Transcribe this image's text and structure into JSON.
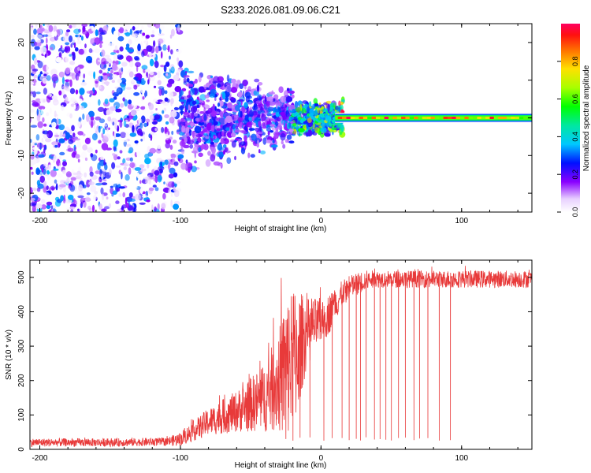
{
  "title": "S233.2026.081.09.06.C21",
  "colors": {
    "signal": "#e83a3a",
    "frame": "#000000"
  },
  "chart_data": [
    {
      "type": "heatmap",
      "title": "S233.2026.081.09.06.C21",
      "xlabel": "Height of straight line (km)",
      "ylabel": "Frequency (Hz)",
      "xlim": [
        -207,
        150
      ],
      "ylim": [
        -25,
        25
      ],
      "xticks": [
        -200,
        -100,
        0,
        100
      ],
      "yticks": [
        -20,
        -10,
        0,
        10,
        20
      ],
      "xtick_labels": [
        "-200",
        "-100",
        "0",
        "100"
      ],
      "ytick_labels": [
        "-20",
        "-10",
        "0",
        "10",
        "20"
      ],
      "description_regions": [
        {
          "x_range": [
            -207,
            -100
          ],
          "pattern": "random noise",
          "amplitude": [
            0.0,
            0.35
          ]
        },
        {
          "x_range": [
            -100,
            -20
          ],
          "pattern": "narrowing noise band",
          "amplitude": [
            0.1,
            0.35
          ]
        },
        {
          "x_range": [
            -20,
            12
          ],
          "pattern": "emerging carrier near 0 Hz",
          "amplitude": [
            0.2,
            0.8
          ]
        },
        {
          "x_range": [
            12,
            150
          ],
          "pattern": "stable carrier at 0 Hz",
          "amplitude": [
            0.4,
            1.0
          ]
        }
      ],
      "colorbar": {
        "label": "Normalized spectral amplitude",
        "range": [
          0,
          1
        ],
        "ticks": [
          0.0,
          0.2,
          0.4,
          0.6,
          0.8
        ],
        "tick_labels": [
          "0.0",
          "0.2",
          "0.4",
          "0.6",
          "0.8"
        ]
      }
    },
    {
      "type": "line",
      "xlabel": "Height of straight line (km)",
      "ylabel": "SNR (10 * v/v)",
      "xlim": [
        -207,
        150
      ],
      "ylim": [
        0,
        550
      ],
      "xticks": [
        -200,
        -100,
        0,
        100
      ],
      "yticks": [
        0,
        100,
        200,
        300,
        400,
        500
      ],
      "xtick_labels": [
        "-200",
        "-100",
        "0",
        "100"
      ],
      "ytick_labels": [
        "0",
        "100",
        "200",
        "300",
        "400",
        "500"
      ],
      "series": [
        {
          "name": "SNR",
          "color": "#e83a3a",
          "x": [
            -207,
            -150,
            -110,
            -100,
            -90,
            -80,
            -70,
            -60,
            -50,
            -40,
            -30,
            -25,
            -20,
            -15,
            -10,
            -5,
            0,
            5,
            10,
            15,
            20,
            30,
            40,
            60,
            80,
            100,
            120,
            150
          ],
          "y": [
            20,
            20,
            22,
            30,
            55,
            80,
            95,
            110,
            130,
            150,
            200,
            230,
            260,
            300,
            340,
            360,
            370,
            390,
            420,
            450,
            470,
            490,
            495,
            495,
            495,
            495,
            495,
            495
          ],
          "spread": [
            12,
            12,
            12,
            20,
            30,
            40,
            50,
            60,
            80,
            100,
            150,
            200,
            230,
            160,
            100,
            80,
            70,
            60,
            50,
            40,
            35,
            30,
            25,
            25,
            25,
            25,
            25,
            25
          ],
          "dropouts_x": [
            -25,
            -20,
            -15,
            -8,
            2,
            8,
            15,
            20,
            25,
            28,
            32,
            38,
            42,
            46,
            50,
            55,
            60,
            66,
            70,
            76,
            84,
            92
          ],
          "dropout_min": 25
        }
      ]
    }
  ]
}
